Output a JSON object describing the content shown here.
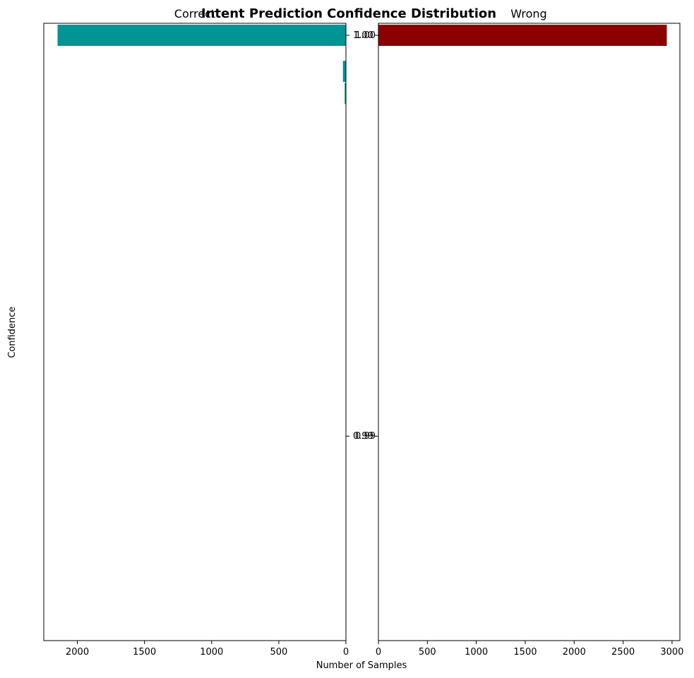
{
  "chart_data": {
    "type": "bar",
    "orientation": "horizontal",
    "title": "Intent Prediction Confidence Distribution",
    "xlabel": "Number of Samples",
    "ylabel": "Confidence",
    "ylim": [
      0.9849,
      1.0003
    ],
    "y_ticks": [
      1.0,
      0.99
    ],
    "y_tick_labels": [
      "1.00",
      "0.99"
    ],
    "panels": [
      {
        "name": "Correct",
        "color": "#009494",
        "xlim": [
          2250,
          0
        ],
        "x_ticks": [
          2000,
          1500,
          1000,
          500,
          0
        ],
        "x_tick_labels": [
          "2000",
          "1500",
          "1000",
          "500",
          "0"
        ],
        "bins": [
          {
            "y": 1.0,
            "value": 2150
          },
          {
            "y": 0.9991,
            "value": 25
          },
          {
            "y": 0.99855,
            "value": 12
          }
        ]
      },
      {
        "name": "Wrong",
        "color": "#8b0000",
        "xlim": [
          0,
          3080
        ],
        "x_ticks": [
          0,
          500,
          1000,
          1500,
          2000,
          2500,
          3000
        ],
        "x_tick_labels": [
          "0",
          "500",
          "1000",
          "1500",
          "2000",
          "2500",
          "3000"
        ],
        "bins": [
          {
            "y": 1.0,
            "value": 2950
          }
        ]
      }
    ]
  }
}
